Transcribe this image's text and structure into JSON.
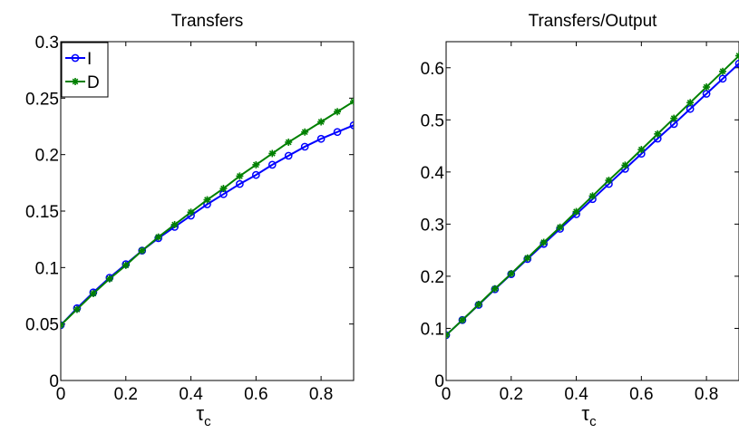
{
  "colors": {
    "I": "#0000ff",
    "D": "#008000"
  },
  "chart_data": [
    {
      "type": "line",
      "title": "Transfers",
      "xlabel": "τ",
      "xlabel_sub": "c",
      "xlim": [
        0,
        0.9
      ],
      "ylim": [
        0,
        0.3
      ],
      "xticks": [
        0,
        0.2,
        0.4,
        0.6,
        0.8
      ],
      "xtick_labels": [
        "0",
        "0.2",
        "0.4",
        "0.6",
        "0.8"
      ],
      "yticks": [
        0,
        0.05,
        0.1,
        0.15,
        0.2,
        0.25,
        0.3
      ],
      "ytick_labels": [
        "0",
        "0.05",
        "0.1",
        "0.15",
        "0.2",
        "0.25",
        "0.3"
      ],
      "legend": "top-left",
      "x": [
        0,
        0.05,
        0.1,
        0.15,
        0.2,
        0.25,
        0.3,
        0.35,
        0.4,
        0.45,
        0.5,
        0.55,
        0.6,
        0.65,
        0.7,
        0.75,
        0.8,
        0.85,
        0.9
      ],
      "series": [
        {
          "name": "I",
          "color": "#0000ff",
          "marker": "circle",
          "values": [
            0.049,
            0.064,
            0.078,
            0.091,
            0.103,
            0.115,
            0.126,
            0.136,
            0.146,
            0.156,
            0.165,
            0.174,
            0.182,
            0.191,
            0.199,
            0.207,
            0.214,
            0.22,
            0.226
          ]
        },
        {
          "name": "D",
          "color": "#008000",
          "marker": "star",
          "values": [
            0.049,
            0.063,
            0.077,
            0.09,
            0.102,
            0.115,
            0.127,
            0.138,
            0.149,
            0.16,
            0.17,
            0.181,
            0.191,
            0.201,
            0.211,
            0.22,
            0.229,
            0.238,
            0.247
          ]
        }
      ]
    },
    {
      "type": "line",
      "title": "Transfers/Output",
      "xlabel": "τ",
      "xlabel_sub": "c",
      "xlim": [
        0,
        0.9
      ],
      "ylim": [
        0,
        0.65
      ],
      "xticks": [
        0,
        0.2,
        0.4,
        0.6,
        0.8
      ],
      "xtick_labels": [
        "0",
        "0.2",
        "0.4",
        "0.6",
        "0.8"
      ],
      "yticks": [
        0,
        0.1,
        0.2,
        0.3,
        0.4,
        0.5,
        0.6
      ],
      "ytick_labels": [
        "0",
        "0.1",
        "0.2",
        "0.3",
        "0.4",
        "0.5",
        "0.6"
      ],
      "legend": "none",
      "x": [
        0,
        0.05,
        0.1,
        0.15,
        0.2,
        0.25,
        0.3,
        0.35,
        0.4,
        0.45,
        0.5,
        0.55,
        0.6,
        0.65,
        0.7,
        0.75,
        0.8,
        0.85,
        0.9
      ],
      "series": [
        {
          "name": "I",
          "color": "#0000ff",
          "marker": "circle",
          "values": [
            0.087,
            0.116,
            0.145,
            0.175,
            0.204,
            0.233,
            0.262,
            0.291,
            0.319,
            0.348,
            0.377,
            0.406,
            0.435,
            0.464,
            0.492,
            0.521,
            0.55,
            0.579,
            0.608
          ]
        },
        {
          "name": "D",
          "color": "#008000",
          "marker": "star",
          "values": [
            0.087,
            0.116,
            0.146,
            0.176,
            0.205,
            0.235,
            0.265,
            0.294,
            0.324,
            0.354,
            0.384,
            0.413,
            0.443,
            0.473,
            0.503,
            0.533,
            0.563,
            0.593,
            0.623
          ]
        }
      ]
    }
  ]
}
